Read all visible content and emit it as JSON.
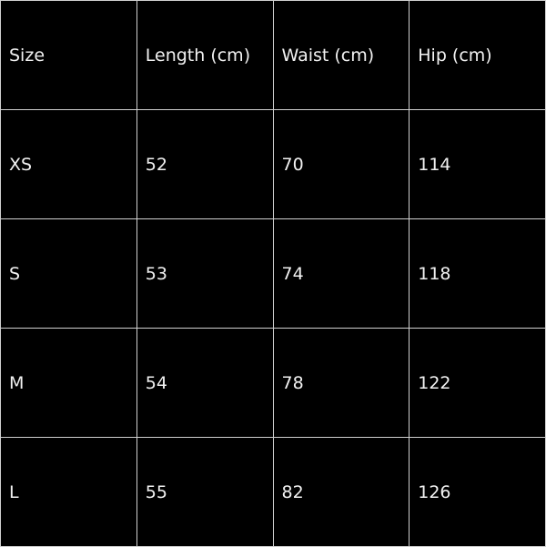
{
  "table": {
    "headers": [
      "Size",
      "Length (cm)",
      "Waist (cm)",
      "Hip (cm)"
    ],
    "rows": [
      [
        "XS",
        "52",
        "70",
        "114"
      ],
      [
        "S",
        "53",
        "74",
        "118"
      ],
      [
        "M",
        "54",
        "78",
        "122"
      ],
      [
        "L",
        "55",
        "82",
        "126"
      ]
    ]
  },
  "colors": {
    "background": "#000000",
    "text": "#f2f2f2",
    "grid": "#d0d0d0"
  }
}
